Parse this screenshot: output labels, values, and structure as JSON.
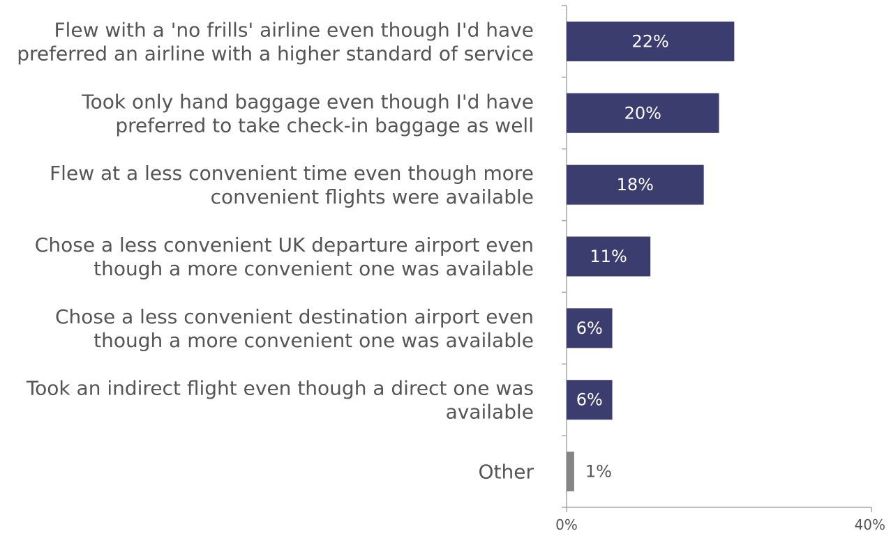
{
  "chart_data": {
    "type": "bar",
    "orientation": "horizontal",
    "categories": [
      [
        "Flew with a 'no frills' airline even though I'd have",
        "preferred an airline with a higher standard of service"
      ],
      [
        "Took only hand baggage even though I'd have",
        "preferred to take check-in baggage as well"
      ],
      [
        "Flew at a less convenient time even though more",
        "convenient flights were available"
      ],
      [
        "Chose a less convenient UK departure airport even",
        "though a more convenient one was available"
      ],
      [
        "Chose a less convenient destination airport even",
        "though a more convenient one was available"
      ],
      [
        "Took an indirect flight even though a direct one was",
        "available"
      ],
      [
        "Other"
      ]
    ],
    "values": [
      22,
      20,
      18,
      11,
      6,
      6,
      1
    ],
    "value_labels": [
      "22%",
      "20%",
      "18%",
      "11%",
      "6%",
      "6%",
      "1%"
    ],
    "bar_colors": [
      "#3b3d6e",
      "#3b3d6e",
      "#3b3d6e",
      "#3b3d6e",
      "#3b3d6e",
      "#3b3d6e",
      "#858585"
    ],
    "xlim": [
      0,
      40
    ],
    "x_ticks": [
      0,
      40
    ],
    "x_tick_labels": [
      "0%",
      "40%"
    ],
    "grid": false,
    "legend": "none",
    "axis_color": "#a6a6a6"
  }
}
